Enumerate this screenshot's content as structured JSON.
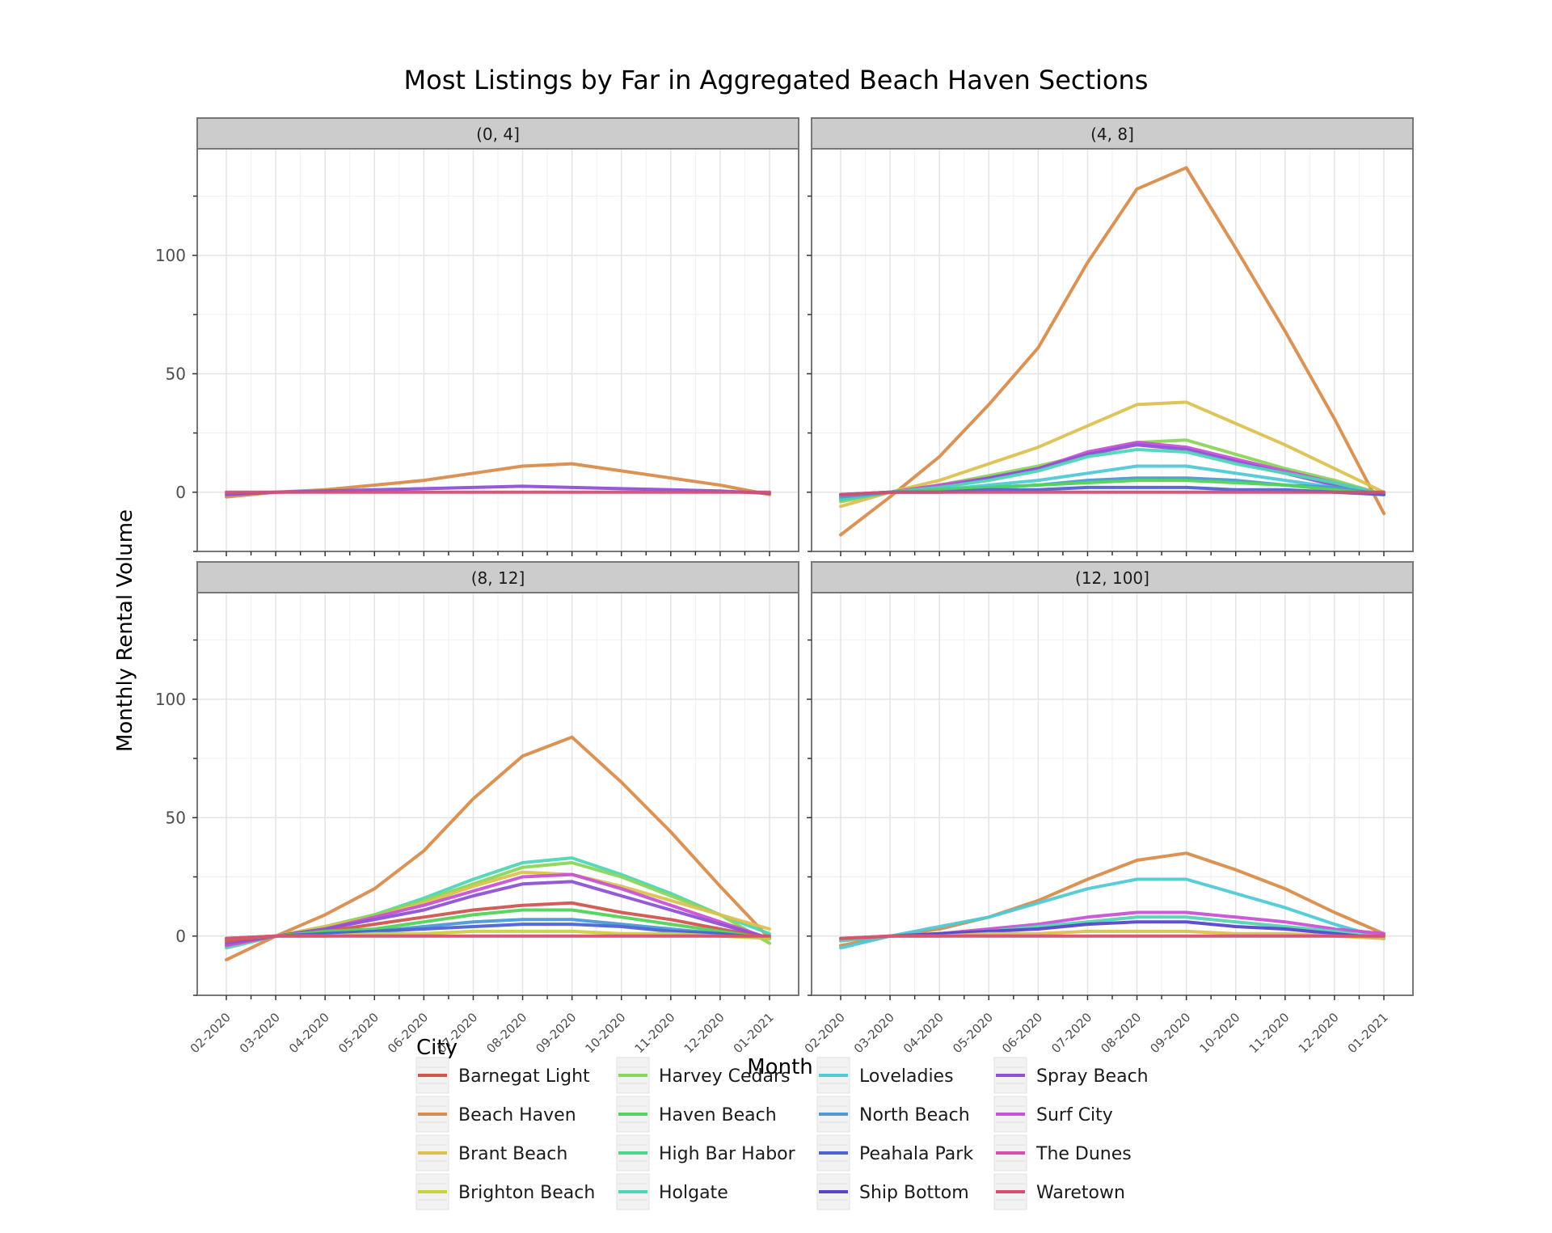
{
  "chart_data": {
    "type": "line",
    "title": "Most Listings by Far in Aggregated Beach Haven Sections",
    "xlabel": "Month",
    "ylabel": "Monthly Rental Volume",
    "x": [
      "02-2020",
      "03-2020",
      "04-2020",
      "05-2020",
      "06-2020",
      "07-2020",
      "08-2020",
      "09-2020",
      "10-2020",
      "11-2020",
      "12-2020",
      "01-2021"
    ],
    "ylim": [
      -25,
      145
    ],
    "yticks": [
      0,
      50,
      100
    ],
    "grid": true,
    "legend_title": "City",
    "legend_position": "bottom",
    "series_styles": [
      {
        "name": "Barnegat Light",
        "color": "#d1544e"
      },
      {
        "name": "Beach Haven",
        "color": "#d98c4c"
      },
      {
        "name": "Brant Beach",
        "color": "#dcc150"
      },
      {
        "name": "Brighton Beach",
        "color": "#c6d43c"
      },
      {
        "name": "Harvey Cedars",
        "color": "#8bd55a"
      },
      {
        "name": "Haven Beach",
        "color": "#52d35a"
      },
      {
        "name": "High Bar Habor",
        "color": "#4fd68c"
      },
      {
        "name": "Holgate",
        "color": "#4ed6b4"
      },
      {
        "name": "Loveladies",
        "color": "#4fcad6"
      },
      {
        "name": "North Beach",
        "color": "#4c9ad6"
      },
      {
        "name": "Peahala Park",
        "color": "#4e62d6"
      },
      {
        "name": "Ship Bottom",
        "color": "#5a44cc"
      },
      {
        "name": "Spray Beach",
        "color": "#8d52d6"
      },
      {
        "name": "Surf City",
        "color": "#c852d6"
      },
      {
        "name": "The Dunes",
        "color": "#d64fb0"
      },
      {
        "name": "Waretown",
        "color": "#d64f72"
      }
    ],
    "panels": [
      {
        "label": "(0, 4]",
        "series": [
          {
            "name": "Beach Haven",
            "values": [
              -2,
              0,
              1,
              3,
              5,
              8,
              11,
              12,
              9,
              6,
              3,
              -1
            ]
          },
          {
            "name": "Spray Beach",
            "values": [
              -1,
              0,
              0.5,
              1,
              1.5,
              2,
              2.5,
              2,
              1.5,
              1,
              0.5,
              -0.5
            ]
          },
          {
            "name": "Waretown",
            "values": [
              0,
              0,
              0,
              0,
              0,
              0,
              0,
              0,
              0,
              0,
              0,
              0
            ]
          }
        ]
      },
      {
        "label": "(4, 8]",
        "series": [
          {
            "name": "Beach Haven",
            "values": [
              -18,
              -2,
              15,
              37,
              61,
              97,
              128,
              137,
              103,
              68,
              31,
              -9
            ]
          },
          {
            "name": "Brant Beach",
            "values": [
              -6,
              0,
              5,
              12,
              19,
              28,
              37,
              38,
              29,
              20,
              10,
              0
            ]
          },
          {
            "name": "Harvey Cedars",
            "values": [
              -4,
              0,
              3,
              7,
              11,
              16,
              21,
              22,
              16,
              10,
              5,
              -1
            ]
          },
          {
            "name": "Surf City",
            "values": [
              -3,
              0,
              3,
              6,
              10,
              17,
              21,
              19,
              14,
              9,
              4,
              -1
            ]
          },
          {
            "name": "Spray Beach",
            "values": [
              -3,
              0,
              2,
              6,
              10,
              16,
              20,
              18,
              13,
              8,
              3,
              -1
            ]
          },
          {
            "name": "Holgate",
            "values": [
              -3,
              0,
              2,
              5,
              9,
              15,
              18,
              17,
              12,
              8,
              4,
              -1
            ]
          },
          {
            "name": "Loveladies",
            "values": [
              -2,
              0,
              1,
              3,
              5,
              8,
              11,
              11,
              8,
              5,
              2,
              -1
            ]
          },
          {
            "name": "North Beach",
            "values": [
              -2,
              0,
              1,
              2,
              3,
              5,
              6,
              6,
              5,
              3,
              2,
              -1
            ]
          },
          {
            "name": "Haven Beach",
            "values": [
              -1,
              0,
              1,
              2,
              3,
              4,
              5,
              5,
              4,
              3,
              1,
              -1
            ]
          },
          {
            "name": "Peahala Park",
            "values": [
              -1,
              0,
              0,
              1,
              1,
              2,
              2,
              2,
              1,
              1,
              0,
              -1
            ]
          },
          {
            "name": "Waretown",
            "values": [
              -1,
              0,
              0,
              0,
              0,
              0,
              0,
              0,
              0,
              0,
              0,
              0
            ]
          }
        ]
      },
      {
        "label": "(8, 12]",
        "series": [
          {
            "name": "Beach Haven",
            "values": [
              -10,
              0,
              9,
              20,
              36,
              58,
              76,
              84,
              65,
              44,
              21,
              -1
            ]
          },
          {
            "name": "Holgate",
            "values": [
              -5,
              0,
              4,
              9,
              16,
              24,
              31,
              33,
              26,
              18,
              9,
              1
            ]
          },
          {
            "name": "Harvey Cedars",
            "values": [
              -4,
              0,
              4,
              9,
              15,
              22,
              29,
              31,
              25,
              17,
              9,
              -3
            ]
          },
          {
            "name": "Brant Beach",
            "values": [
              -4,
              0,
              4,
              8,
              14,
              21,
              27,
              26,
              21,
              15,
              9,
              3
            ]
          },
          {
            "name": "Surf City",
            "values": [
              -4,
              0,
              3,
              8,
              13,
              19,
              25,
              26,
              20,
              13,
              6,
              -1
            ]
          },
          {
            "name": "Spray Beach",
            "values": [
              -3,
              0,
              3,
              7,
              11,
              17,
              22,
              23,
              17,
              11,
              5,
              -1
            ]
          },
          {
            "name": "Barnegat Light",
            "values": [
              -2,
              0,
              2,
              5,
              8,
              11,
              13,
              14,
              10,
              7,
              3,
              -1
            ]
          },
          {
            "name": "Haven Beach",
            "values": [
              -1,
              0,
              2,
              3,
              6,
              9,
              11,
              11,
              8,
              5,
              2,
              -1
            ]
          },
          {
            "name": "North Beach",
            "values": [
              -1,
              0,
              1,
              2,
              4,
              6,
              7,
              7,
              5,
              3,
              1,
              -1
            ]
          },
          {
            "name": "Peahala Park",
            "values": [
              -1,
              0,
              1,
              2,
              3,
              4,
              5,
              5,
              4,
              2,
              1,
              -1
            ]
          },
          {
            "name": "Brighton Beach",
            "values": [
              -1,
              0,
              0,
              1,
              1,
              2,
              2,
              2,
              1,
              1,
              0,
              -1
            ]
          },
          {
            "name": "Waretown",
            "values": [
              -1,
              0,
              0,
              0,
              0,
              0,
              0,
              0,
              0,
              0,
              0,
              0
            ]
          }
        ]
      },
      {
        "label": "(12, 100]",
        "series": [
          {
            "name": "Beach Haven",
            "values": [
              -4,
              0,
              3,
              8,
              15,
              24,
              32,
              35,
              28,
              20,
              10,
              1
            ]
          },
          {
            "name": "Loveladies",
            "values": [
              -5,
              0,
              4,
              8,
              14,
              20,
              24,
              24,
              18,
              12,
              5,
              -1
            ]
          },
          {
            "name": "Surf City",
            "values": [
              -2,
              0,
              1,
              3,
              5,
              8,
              10,
              10,
              8,
              6,
              3,
              1
            ]
          },
          {
            "name": "Holgate",
            "values": [
              -2,
              0,
              1,
              2,
              4,
              6,
              8,
              8,
              6,
              4,
              2,
              -1
            ]
          },
          {
            "name": "Ship Bottom",
            "values": [
              -1,
              0,
              1,
              2,
              3,
              5,
              6,
              6,
              4,
              3,
              1,
              -1
            ]
          },
          {
            "name": "Brant Beach",
            "values": [
              -1,
              0,
              0,
              1,
              1,
              2,
              2,
              2,
              1,
              1,
              0,
              -1
            ]
          },
          {
            "name": "Waretown",
            "values": [
              -1,
              0,
              0,
              0,
              0,
              0,
              0,
              0,
              0,
              0,
              0,
              0
            ]
          }
        ]
      }
    ]
  }
}
